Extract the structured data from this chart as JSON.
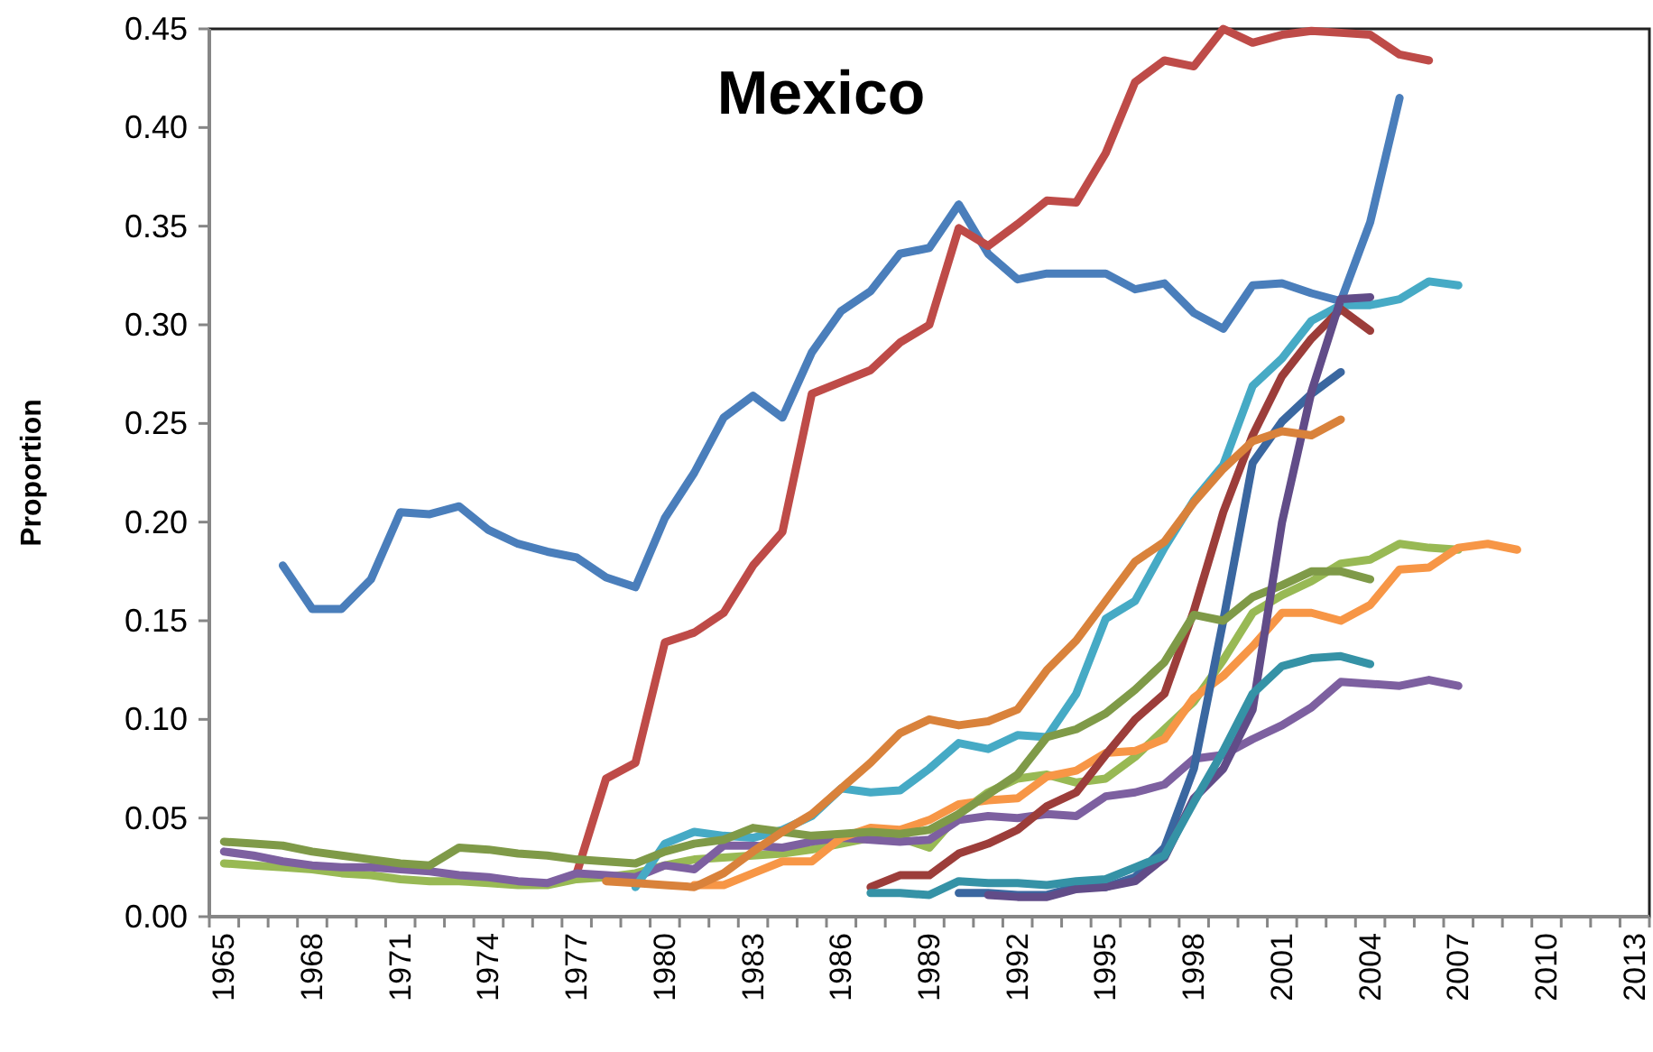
{
  "chart_data": {
    "type": "line",
    "title": "Mexico",
    "ylabel": "Proportion",
    "categories": [
      "1965",
      null,
      null,
      "1968",
      null,
      null,
      "1971",
      null,
      null,
      "1974",
      null,
      null,
      "1977",
      null,
      null,
      "1980",
      null,
      null,
      "1983",
      null,
      null,
      "1986",
      null,
      null,
      "1989",
      null,
      null,
      "1992",
      null,
      null,
      "1995",
      null,
      null,
      "1998",
      null,
      null,
      "2001",
      null,
      null,
      "2004",
      null,
      null,
      "2007",
      null,
      null,
      "2010",
      null,
      null,
      "2013"
    ],
    "ylim": [
      0,
      0.45
    ],
    "yticks": [
      {
        "value": 0,
        "label": "0.00"
      },
      {
        "value": 0.05,
        "label": "0.05"
      },
      {
        "value": 0.1,
        "label": "0.10"
      },
      {
        "value": 0.15,
        "label": "0.15"
      },
      {
        "value": 0.2,
        "label": "0.20"
      },
      {
        "value": 0.25,
        "label": "0.25"
      },
      {
        "value": 0.3,
        "label": "0.30"
      },
      {
        "value": 0.35,
        "label": "0.35"
      },
      {
        "value": 0.4,
        "label": "0.40"
      },
      {
        "value": 0.45,
        "label": "0.45"
      }
    ],
    "series": [
      {
        "color": "#4a7ebb",
        "values": [
          null,
          null,
          0.178,
          0.156,
          0.156,
          0.171,
          0.205,
          0.204,
          0.208,
          0.196,
          0.189,
          0.185,
          0.182,
          0.172,
          0.167,
          0.202,
          0.225,
          0.253,
          0.264,
          0.253,
          0.286,
          0.307,
          0.317,
          0.336,
          0.339,
          0.361,
          0.336,
          0.323,
          0.326,
          0.326,
          0.326,
          0.318,
          0.321,
          0.306,
          0.298,
          0.32,
          0.321,
          0.316,
          0.312,
          0.352,
          0.415,
          null,
          null,
          null,
          null,
          null,
          null,
          null,
          null
        ]
      },
      {
        "color": "#be4b48",
        "values": [
          null,
          null,
          null,
          null,
          null,
          null,
          null,
          null,
          null,
          null,
          null,
          null,
          0.022,
          0.07,
          0.078,
          0.139,
          0.144,
          0.154,
          0.178,
          0.195,
          0.265,
          0.271,
          0.277,
          0.291,
          0.3,
          0.349,
          0.34,
          0.351,
          0.363,
          0.362,
          0.387,
          0.423,
          0.434,
          0.431,
          0.45,
          0.443,
          0.447,
          0.449,
          0.448,
          0.447,
          0.437,
          0.434,
          null,
          null,
          null,
          null,
          null,
          null,
          null
        ]
      },
      {
        "color": "#98b954",
        "values": [
          0.027,
          0.026,
          0.025,
          0.024,
          0.022,
          0.021,
          0.019,
          0.018,
          0.018,
          0.017,
          0.016,
          0.016,
          0.019,
          0.02,
          0.022,
          0.026,
          0.029,
          0.03,
          0.031,
          0.032,
          0.034,
          0.037,
          0.04,
          0.04,
          0.035,
          0.052,
          0.063,
          0.07,
          0.072,
          0.068,
          0.07,
          0.081,
          0.095,
          0.109,
          0.13,
          0.154,
          0.163,
          0.17,
          0.179,
          0.181,
          0.189,
          0.187,
          0.186,
          null,
          null,
          null,
          null,
          null,
          null
        ]
      },
      {
        "color": "#7d60a0",
        "values": [
          0.033,
          0.031,
          0.028,
          0.026,
          0.025,
          0.025,
          0.024,
          0.023,
          0.021,
          0.02,
          0.018,
          0.017,
          0.022,
          0.021,
          0.02,
          0.026,
          0.024,
          0.036,
          0.036,
          0.035,
          0.038,
          0.04,
          0.039,
          0.038,
          0.039,
          0.049,
          0.051,
          0.05,
          0.052,
          0.051,
          0.061,
          0.063,
          0.067,
          0.08,
          0.082,
          0.09,
          0.097,
          0.106,
          0.119,
          0.118,
          0.117,
          0.12,
          0.117,
          null,
          null,
          null,
          null,
          null,
          null
        ]
      },
      {
        "color": "#46aac5",
        "values": [
          null,
          null,
          null,
          null,
          null,
          null,
          null,
          null,
          null,
          null,
          null,
          null,
          null,
          null,
          0.015,
          0.037,
          0.043,
          0.041,
          0.04,
          0.044,
          0.051,
          0.065,
          0.063,
          0.064,
          0.075,
          0.088,
          0.085,
          0.092,
          0.091,
          0.113,
          0.151,
          0.16,
          0.187,
          0.211,
          0.229,
          0.269,
          0.283,
          0.302,
          0.31,
          0.31,
          0.313,
          0.322,
          0.32,
          null,
          null,
          null,
          null,
          null,
          null
        ]
      },
      {
        "color": "#f79646",
        "values": [
          null,
          null,
          null,
          null,
          null,
          null,
          null,
          null,
          null,
          null,
          null,
          null,
          null,
          null,
          null,
          null,
          0.016,
          0.016,
          0.022,
          0.028,
          0.028,
          0.04,
          0.045,
          0.044,
          0.049,
          0.057,
          0.059,
          0.06,
          0.071,
          0.074,
          0.083,
          0.084,
          0.09,
          0.111,
          0.122,
          0.137,
          0.154,
          0.154,
          0.15,
          0.158,
          0.176,
          0.177,
          0.187,
          0.189,
          0.186,
          null,
          null,
          null,
          null
        ]
      },
      {
        "color": "#3a67a0",
        "values": [
          null,
          null,
          null,
          null,
          null,
          null,
          null,
          null,
          null,
          null,
          null,
          null,
          null,
          null,
          null,
          null,
          null,
          null,
          null,
          null,
          null,
          null,
          null,
          null,
          null,
          0.012,
          0.012,
          0.011,
          0.011,
          0.015,
          0.015,
          0.02,
          0.035,
          0.075,
          0.15,
          0.23,
          0.251,
          0.265,
          0.276,
          null,
          null,
          null,
          null,
          null,
          null,
          null,
          null,
          null,
          null
        ]
      },
      {
        "color": "#9c3d3a",
        "values": [
          null,
          null,
          null,
          null,
          null,
          null,
          null,
          null,
          null,
          null,
          null,
          null,
          null,
          null,
          null,
          null,
          null,
          null,
          null,
          null,
          null,
          null,
          0.015,
          0.021,
          0.021,
          0.032,
          0.037,
          0.044,
          0.056,
          0.063,
          0.082,
          0.1,
          0.113,
          0.155,
          0.205,
          0.244,
          0.274,
          0.293,
          0.308,
          0.297,
          null,
          null,
          null,
          null,
          null,
          null,
          null,
          null,
          null
        ]
      },
      {
        "color": "#7f9a48",
        "values": [
          0.038,
          0.037,
          0.036,
          0.033,
          0.031,
          0.029,
          0.027,
          0.026,
          0.035,
          0.034,
          0.032,
          0.031,
          0.029,
          0.028,
          0.027,
          0.033,
          0.037,
          0.039,
          0.045,
          0.043,
          0.041,
          0.042,
          0.043,
          0.042,
          0.044,
          0.052,
          0.062,
          0.072,
          0.091,
          0.095,
          0.103,
          0.115,
          0.129,
          0.153,
          0.15,
          0.162,
          0.168,
          0.175,
          0.175,
          0.171,
          null,
          null,
          null,
          null,
          null,
          null,
          null,
          null,
          null
        ]
      },
      {
        "color": "#614c88",
        "values": [
          null,
          null,
          null,
          null,
          null,
          null,
          null,
          null,
          null,
          null,
          null,
          null,
          null,
          null,
          null,
          null,
          null,
          null,
          null,
          null,
          null,
          null,
          null,
          null,
          null,
          null,
          0.011,
          0.01,
          0.01,
          0.014,
          0.015,
          0.018,
          0.03,
          0.06,
          0.075,
          0.105,
          0.2,
          0.266,
          0.313,
          0.314,
          null,
          null,
          null,
          null,
          null,
          null,
          null,
          null,
          null
        ]
      },
      {
        "color": "#3592a6",
        "values": [
          null,
          null,
          null,
          null,
          null,
          null,
          null,
          null,
          null,
          null,
          null,
          null,
          null,
          null,
          null,
          null,
          null,
          null,
          null,
          null,
          null,
          null,
          0.012,
          0.012,
          0.011,
          0.018,
          0.017,
          0.017,
          0.016,
          0.018,
          0.019,
          0.025,
          0.031,
          0.058,
          0.084,
          0.113,
          0.127,
          0.131,
          0.132,
          0.128,
          null,
          null,
          null,
          null,
          null,
          null,
          null,
          null,
          null
        ]
      },
      {
        "color": "#d9823b",
        "values": [
          null,
          null,
          null,
          null,
          null,
          null,
          null,
          null,
          null,
          null,
          null,
          null,
          null,
          0.018,
          0.017,
          0.016,
          0.015,
          0.022,
          0.033,
          0.043,
          0.052,
          0.065,
          0.078,
          0.093,
          0.1,
          0.097,
          0.099,
          0.105,
          0.125,
          0.14,
          0.16,
          0.18,
          0.19,
          0.21,
          0.227,
          0.241,
          0.246,
          0.244,
          0.252,
          null,
          null,
          null,
          null,
          null,
          null,
          null,
          null,
          null,
          null
        ]
      }
    ]
  }
}
